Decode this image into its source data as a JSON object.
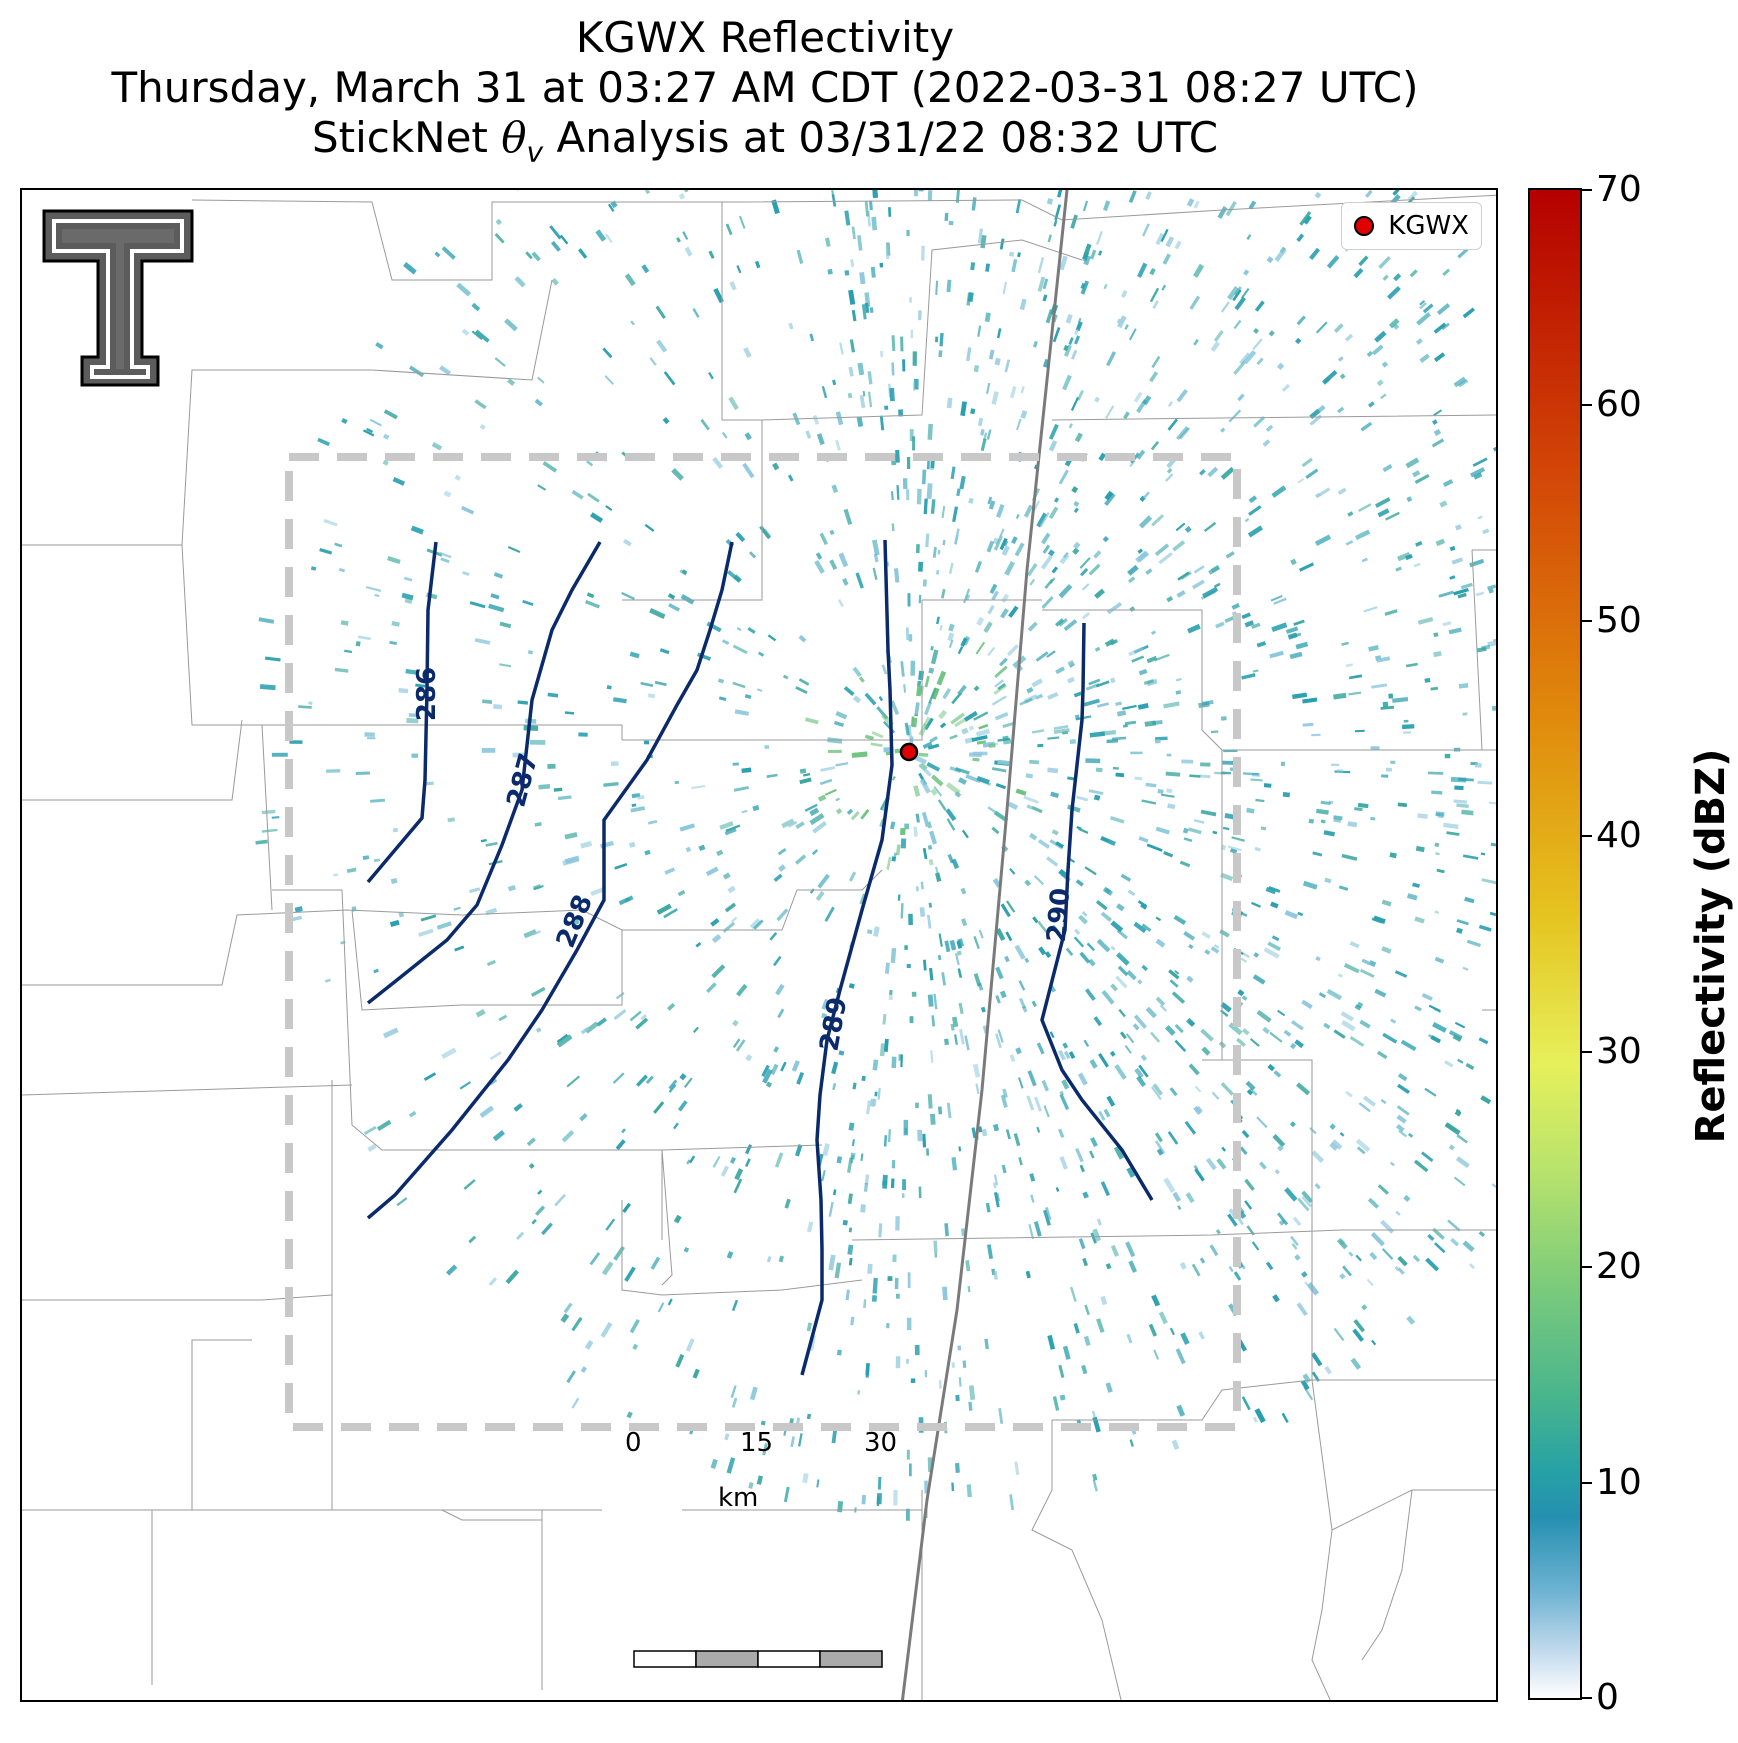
{
  "title": {
    "line1": "KGWX Reflectivity",
    "line2": "Thursday, March 31 at 03:27 AM CDT (2022-03-31 08:27 UTC)",
    "line3_prefix": "StickNet ",
    "line3_symbol": "θ",
    "line3_subscript": "v",
    "line3_suffix": " Analysis at 03/31/22 08:32 UTC"
  },
  "legend": {
    "label": "KGWX",
    "marker_color": "#e00000"
  },
  "scalebar": {
    "ticks": [
      "0",
      "15",
      "30"
    ],
    "unit": "km"
  },
  "colorbar": {
    "label": "Reflectivity (dBZ)",
    "ticks": [
      "0",
      "10",
      "20",
      "30",
      "40",
      "50",
      "60",
      "70"
    ],
    "range": [
      0,
      70
    ]
  },
  "contours": {
    "color": "#0b2a6b",
    "labels": [
      "286",
      "287",
      "288",
      "289",
      "290"
    ]
  },
  "colors": {
    "radar_echo_main": "#2a9fb0",
    "radar_echo_light": "#8cc7dd",
    "radar_echo_strong": "#6cc27e",
    "analysis_box": "#c8c8c8",
    "county_lines": "#9a9a9a",
    "highway": "#7a7a7a"
  },
  "logo": {
    "name": "texas-tech-double-t-logo"
  }
}
